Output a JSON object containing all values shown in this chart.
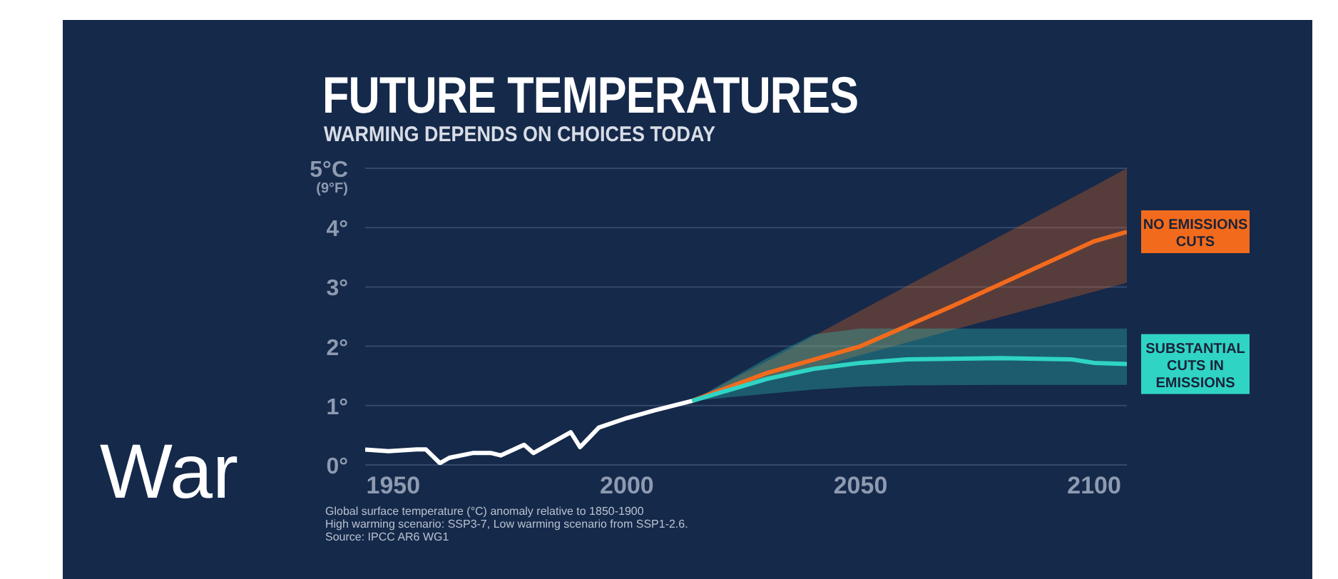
{
  "chart_data": {
    "type": "line",
    "title": "FUTURE TEMPERATURES",
    "subtitle": "WARMING DEPENDS ON CHOICES TODAY",
    "xlim": [
      1944,
      2107
    ],
    "xticks": [
      1950,
      2000,
      2050,
      2100
    ],
    "ylim": [
      0,
      5
    ],
    "yticks": [
      {
        "value": 0,
        "label": "0°"
      },
      {
        "value": 1,
        "label": "1°"
      },
      {
        "value": 2,
        "label": "2°"
      },
      {
        "value": 3,
        "label": "3°"
      },
      {
        "value": 4,
        "label": "4°"
      },
      {
        "value": 5,
        "label": "5°C\n(9°F)"
      }
    ],
    "grid": "y",
    "series": [
      {
        "color": "#ffffff",
        "x": [
          1944,
          1949,
          1955,
          1957,
          1960,
          1962,
          1967,
          1971,
          1973,
          1978,
          1980,
          1988,
          1990,
          1994,
          2000,
          2006,
          2014
        ],
        "values": [
          0.26,
          0.23,
          0.26,
          0.26,
          0.03,
          0.12,
          0.2,
          0.2,
          0.16,
          0.34,
          0.2,
          0.55,
          0.3,
          0.63,
          0.79,
          0.92,
          1.08
        ]
      },
      {
        "name": "NO EMISSIONS CUTS",
        "color": "#f26b1d",
        "x": [
          2014,
          2030,
          2050,
          2070,
          2100,
          2107
        ],
        "values": [
          1.08,
          1.55,
          2.0,
          2.69,
          3.77,
          3.93
        ],
        "lower": [
          1.08,
          1.42,
          1.85,
          2.28,
          2.92,
          3.07
        ],
        "upper": [
          1.08,
          1.75,
          2.6,
          3.44,
          4.7,
          5.0
        ]
      },
      {
        "name": "SUBSTANTIAL CUTS IN EMISSIONS",
        "color": "#2fd4c5",
        "x": [
          2014,
          2030,
          2040,
          2050,
          2060,
          2080,
          2095,
          2100,
          2107
        ],
        "values": [
          1.08,
          1.45,
          1.62,
          1.72,
          1.78,
          1.8,
          1.78,
          1.72,
          1.7
        ],
        "lower": [
          1.08,
          1.2,
          1.27,
          1.32,
          1.34,
          1.35,
          1.35,
          1.35,
          1.35
        ],
        "upper": [
          1.08,
          1.8,
          2.2,
          2.3,
          2.3,
          2.3,
          2.3,
          2.3,
          2.3
        ]
      }
    ],
    "annotations": [
      "Global surface temperature (°C) anomaly relative to 1850-1900",
      "High warming scenario: SSP3-7, Low warming scenario from SSP1-2.6.",
      "Source: IPCC AR6 WG1",
      "War"
    ]
  }
}
